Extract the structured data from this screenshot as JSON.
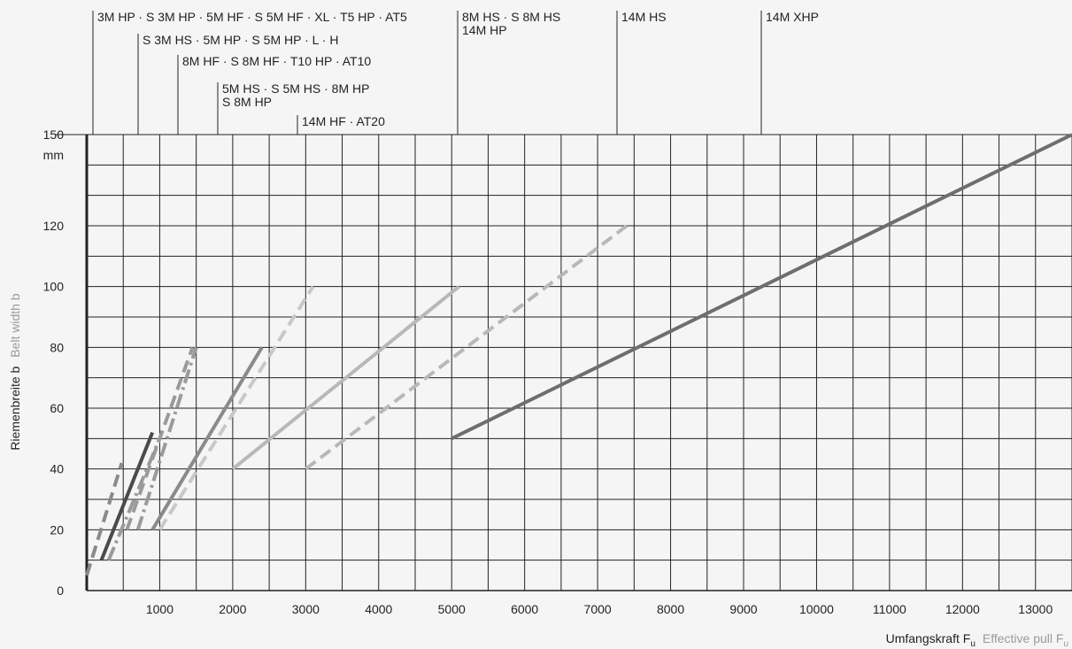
{
  "chart_data": {
    "type": "line",
    "ylabel_de": "Riemenbreite b",
    "ylabel_en": "Belt width b",
    "yunit": "mm",
    "xlabel_de": "Umfangskraft F",
    "xlabel_en": "Effective pull F",
    "xlabel_sub": "u",
    "xlim": [
      0,
      13500
    ],
    "ylim": [
      0,
      150
    ],
    "x_ticks": [
      1000,
      2000,
      3000,
      4000,
      5000,
      6000,
      7000,
      8000,
      9000,
      10000,
      11000,
      12000,
      13000
    ],
    "y_ticks": [
      0,
      20,
      40,
      60,
      80,
      100,
      120,
      150
    ],
    "grid": true,
    "belt_labels": [
      {
        "text": "3M HP · S 3M HP · 5M HF · S 5M HF · XL · T5 HP · AT5"
      },
      {
        "text": "S 3M HS · 5M HP · S 5M HP · L · H"
      },
      {
        "text": "8M HF · S 8M HF · T10 HP · AT10"
      },
      {
        "text": "5M HS · S 5M HS · 8M HP",
        "text2": "S 8M HP"
      },
      {
        "text": "14M HF · AT20"
      },
      {
        "text": "8M HS · S 8M HS",
        "text2": "14M HP"
      },
      {
        "text": "14M HS"
      },
      {
        "text": "14M XHP"
      }
    ],
    "series": [
      {
        "x": [
          0,
          480
        ],
        "y": [
          5,
          42
        ],
        "color": "#8a8a8a",
        "dash": "dashed"
      },
      {
        "x": [
          200,
          900
        ],
        "y": [
          10,
          52
        ],
        "color": "#4a4a4a",
        "dash": "solid"
      },
      {
        "x": [
          300,
          1000
        ],
        "y": [
          10,
          50
        ],
        "color": "#9a9a9a",
        "dash": "dashdot"
      },
      {
        "x": [
          550,
          1450
        ],
        "y": [
          20,
          80
        ],
        "color": "#9a9a9a",
        "dash": "dashed"
      },
      {
        "x": [
          700,
          1500
        ],
        "y": [
          20,
          80
        ],
        "color": "#9a9a9a",
        "dash": "dashdot"
      },
      {
        "x": [
          900,
          2400
        ],
        "y": [
          20,
          80
        ],
        "color": "#8a8a8a",
        "dash": "solid"
      },
      {
        "x": [
          1000,
          3100
        ],
        "y": [
          20,
          100
        ],
        "color": "#c8c8c8",
        "dash": "dashed"
      },
      {
        "x": [
          2000,
          5100
        ],
        "y": [
          40,
          100
        ],
        "color": "#b8b8b8",
        "dash": "solid"
      },
      {
        "x": [
          3000,
          7400
        ],
        "y": [
          40,
          120
        ],
        "color": "#b8b8b8",
        "dash": "dashed"
      },
      {
        "x": [
          5000,
          13500
        ],
        "y": [
          50,
          150
        ],
        "color": "#6e6e6e",
        "dash": "solid"
      }
    ]
  }
}
